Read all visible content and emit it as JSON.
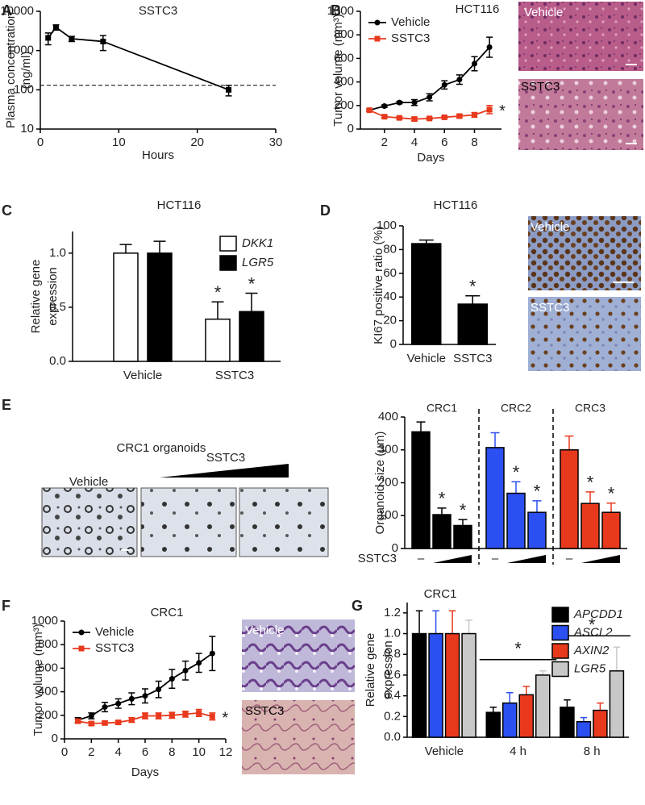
{
  "panel_labels": [
    "A",
    "B",
    "C",
    "D",
    "E",
    "F",
    "G"
  ],
  "photo_labels": {
    "B": [
      "Vehicle",
      "SSTC3"
    ],
    "D": [
      "Vehicle",
      "SSTC3"
    ],
    "F": [
      "Vehicle",
      "SSTC3"
    ]
  },
  "organoids": {
    "title": "CRC1 organoids",
    "labels": [
      "Vehicle",
      "SSTC3"
    ]
  },
  "chart_data": [
    {
      "type": "line",
      "title": "SSTC3",
      "xlabel": "Hours",
      "ylabel": [
        "Plasma concentration",
        "(ng/ml)"
      ],
      "log_y": true,
      "xlim": [
        0,
        30
      ],
      "xticks": [
        0,
        10,
        20,
        30
      ],
      "ylim": [
        10,
        10000
      ],
      "yticks": [
        10,
        100,
        1000,
        10000
      ],
      "hline": 130,
      "x": [
        1,
        2,
        4,
        8,
        24
      ],
      "series": [
        {
          "color": "#000000",
          "marker": "square",
          "values": [
            2100,
            3900,
            2000,
            1700,
            100
          ],
          "errors": [
            700,
            600,
            300,
            700,
            30
          ]
        }
      ]
    },
    {
      "type": "line",
      "title": "HCT116",
      "xlabel": "Days",
      "ylabel": "Tumor volume (mm³)",
      "legend": "upper left",
      "xlim": [
        0.4,
        9.8
      ],
      "xticks": [
        2,
        4,
        6,
        8
      ],
      "ylim": [
        0,
        1000
      ],
      "yticks": [
        0,
        200,
        400,
        600,
        800,
        1000
      ],
      "x": [
        1,
        2,
        3,
        4,
        5,
        6,
        7,
        8,
        9
      ],
      "series": [
        {
          "name": "Vehicle",
          "color": "#000000",
          "marker": "circle",
          "values": [
            160,
            195,
            225,
            225,
            270,
            375,
            420,
            555,
            695
          ],
          "errors": [
            10,
            10,
            10,
            25,
            30,
            35,
            40,
            60,
            85
          ]
        },
        {
          "name": "SSTC3",
          "color": "#e8391d",
          "marker": "square",
          "values": [
            160,
            105,
            95,
            85,
            90,
            100,
            110,
            120,
            165
          ],
          "errors": [
            10,
            10,
            10,
            15,
            10,
            10,
            15,
            20,
            35
          ],
          "annotation": "*"
        }
      ]
    },
    {
      "type": "bar",
      "title": "HCT116",
      "ylabel": [
        "Relative gene",
        "expression"
      ],
      "legend": "upper right",
      "categories": [
        "Vehicle",
        "SSTC3"
      ],
      "ylim": [
        0,
        1.2
      ],
      "yticks": [
        {
          "value": 0,
          "label": "0.0"
        },
        {
          "value": 0.5,
          "label": "0.5"
        },
        {
          "value": 1,
          "label": "1.0"
        }
      ],
      "series": [
        {
          "name": "DKK1",
          "color": "#ffffff",
          "values": [
            1.0,
            0.39
          ],
          "errors": [
            0.08,
            0.16
          ],
          "annotations": [
            null,
            "*"
          ]
        },
        {
          "name": "LGR5",
          "color": "#000000",
          "values": [
            1.0,
            0.46
          ],
          "errors": [
            0.11,
            0.17
          ],
          "annotations": [
            null,
            "*"
          ]
        }
      ]
    },
    {
      "type": "bar",
      "title": "HCT116",
      "ylabel": "KI67 positive ratio (%)",
      "categories": [
        "Vehicle",
        "SSTC3"
      ],
      "ylim": [
        0,
        100
      ],
      "yticks": [
        0,
        20,
        40,
        60,
        80,
        100
      ],
      "color": "#000000",
      "values": [
        85,
        34
      ],
      "errors": [
        3,
        7
      ],
      "annotations": [
        null,
        "*"
      ]
    },
    {
      "type": "bar",
      "ylabel": "Organoid size (µm)",
      "xlabel": "SSTC3",
      "ylim": [
        0,
        400
      ],
      "yticks": [
        0,
        100,
        200,
        300,
        400
      ],
      "groups": [
        {
          "name": "CRC1",
          "color": "#000000",
          "marker": "–",
          "values": [
            355,
            103,
            70
          ],
          "errors": [
            30,
            20,
            18
          ],
          "annotations": [
            null,
            "*",
            "*"
          ]
        },
        {
          "name": "CRC2",
          "color": "#2b4ff0",
          "marker": "–",
          "values": [
            307,
            168,
            110
          ],
          "errors": [
            45,
            35,
            35
          ],
          "annotations": [
            null,
            "*",
            "*"
          ]
        },
        {
          "name": "CRC3",
          "color": "#e8391d",
          "marker": "–",
          "values": [
            300,
            137,
            110
          ],
          "errors": [
            42,
            35,
            28
          ],
          "annotations": [
            null,
            "*",
            "*"
          ]
        }
      ]
    },
    {
      "type": "line",
      "title": "CRC1",
      "xlabel": "Days",
      "ylabel": "Tumor volume (mm³)",
      "legend": "upper left",
      "xlim": [
        0,
        12
      ],
      "xticks": [
        0,
        2,
        4,
        6,
        8,
        10,
        12
      ],
      "ylim": [
        0,
        1000
      ],
      "yticks": [
        0,
        200,
        400,
        600,
        800,
        1000
      ],
      "x": [
        1,
        2,
        3,
        4,
        5,
        6,
        7,
        8,
        9,
        10,
        11
      ],
      "series": [
        {
          "name": "Vehicle",
          "color": "#000000",
          "marker": "circle",
          "values": [
            160,
            195,
            270,
            300,
            340,
            365,
            420,
            510,
            580,
            645,
            725
          ],
          "errors": [
            20,
            25,
            40,
            40,
            50,
            60,
            70,
            80,
            80,
            80,
            145
          ]
        },
        {
          "name": "SSTC3",
          "color": "#e8391d",
          "marker": "square",
          "values": [
            150,
            130,
            135,
            140,
            160,
            195,
            195,
            200,
            210,
            220,
            190
          ],
          "errors": [
            15,
            15,
            15,
            15,
            20,
            25,
            25,
            25,
            25,
            30,
            30
          ],
          "annotation": "*"
        }
      ]
    },
    {
      "type": "bar",
      "title": "CRC1",
      "ylabel": [
        "Relative gene",
        "expression"
      ],
      "legend": "upper right",
      "categories": [
        "Vehicle",
        "4 h",
        "8 h"
      ],
      "ylim": [
        0,
        1.3
      ],
      "yticks": [
        {
          "value": 0,
          "label": "0.0"
        },
        {
          "value": 0.2,
          "label": "0.2"
        },
        {
          "value": 0.4,
          "label": "0.4"
        },
        {
          "value": 0.6,
          "label": "0.6"
        },
        {
          "value": 0.8,
          "label": "0.8"
        },
        {
          "value": 1,
          "label": "1.0"
        },
        {
          "value": 1.2,
          "label": "1.2"
        }
      ],
      "group_annotations": [
        null,
        "*",
        "*"
      ],
      "series": [
        {
          "name": "APCDD1",
          "color": "#000000",
          "values": [
            1.0,
            0.24,
            0.29
          ],
          "errors": [
            0.22,
            0.05,
            0.07
          ]
        },
        {
          "name": "ASCL2",
          "color": "#2b4ff0",
          "values": [
            1.0,
            0.33,
            0.15
          ],
          "errors": [
            0.22,
            0.1,
            0.04
          ]
        },
        {
          "name": "AXIN2",
          "color": "#e8391d",
          "values": [
            1.0,
            0.41,
            0.26
          ],
          "errors": [
            0.22,
            0.08,
            0.07
          ]
        },
        {
          "name": "LGR5",
          "color": "#c8c8c8",
          "values": [
            1.0,
            0.6,
            0.64
          ],
          "errors": [
            0.13,
            0.04,
            0.23
          ]
        }
      ]
    }
  ]
}
